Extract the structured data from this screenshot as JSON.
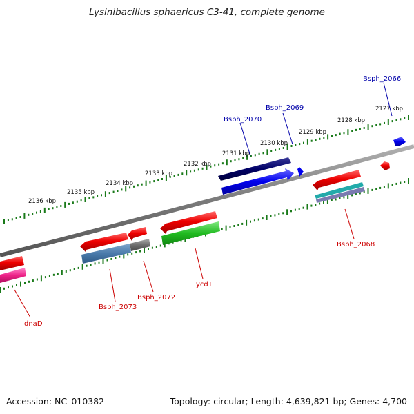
{
  "title": "Lysinibacillus sphaericus C3-41, complete genome",
  "footer": {
    "accession": "Accession: NC_010382",
    "summary": "Topology: circular; Length: 4,639,821 bp; Genes: 4,700"
  },
  "ticks": [
    "2127 kbp",
    "2128 kbp",
    "2129 kbp",
    "2130 kbp",
    "2131 kbp",
    "2132 kbp",
    "2133 kbp",
    "2134 kbp",
    "2135 kbp",
    "2136 kbp"
  ],
  "gene_labels": {
    "bsph_2066": "Bsph_2066",
    "bsph_2069": "Bsph_2069",
    "bsph_2070": "Bsph_2070",
    "bsph_2068": "Bsph_2068",
    "ycdT": "ycdT",
    "bsph_2072": "Bsph_2072",
    "bsph_2073": "Bsph_2073",
    "dnaD": "dnaD"
  },
  "colors": {
    "forward_label": "#0000aa",
    "reverse_label": "#cc0000",
    "backbone": "#808080",
    "tick": "#1a7a1a"
  }
}
